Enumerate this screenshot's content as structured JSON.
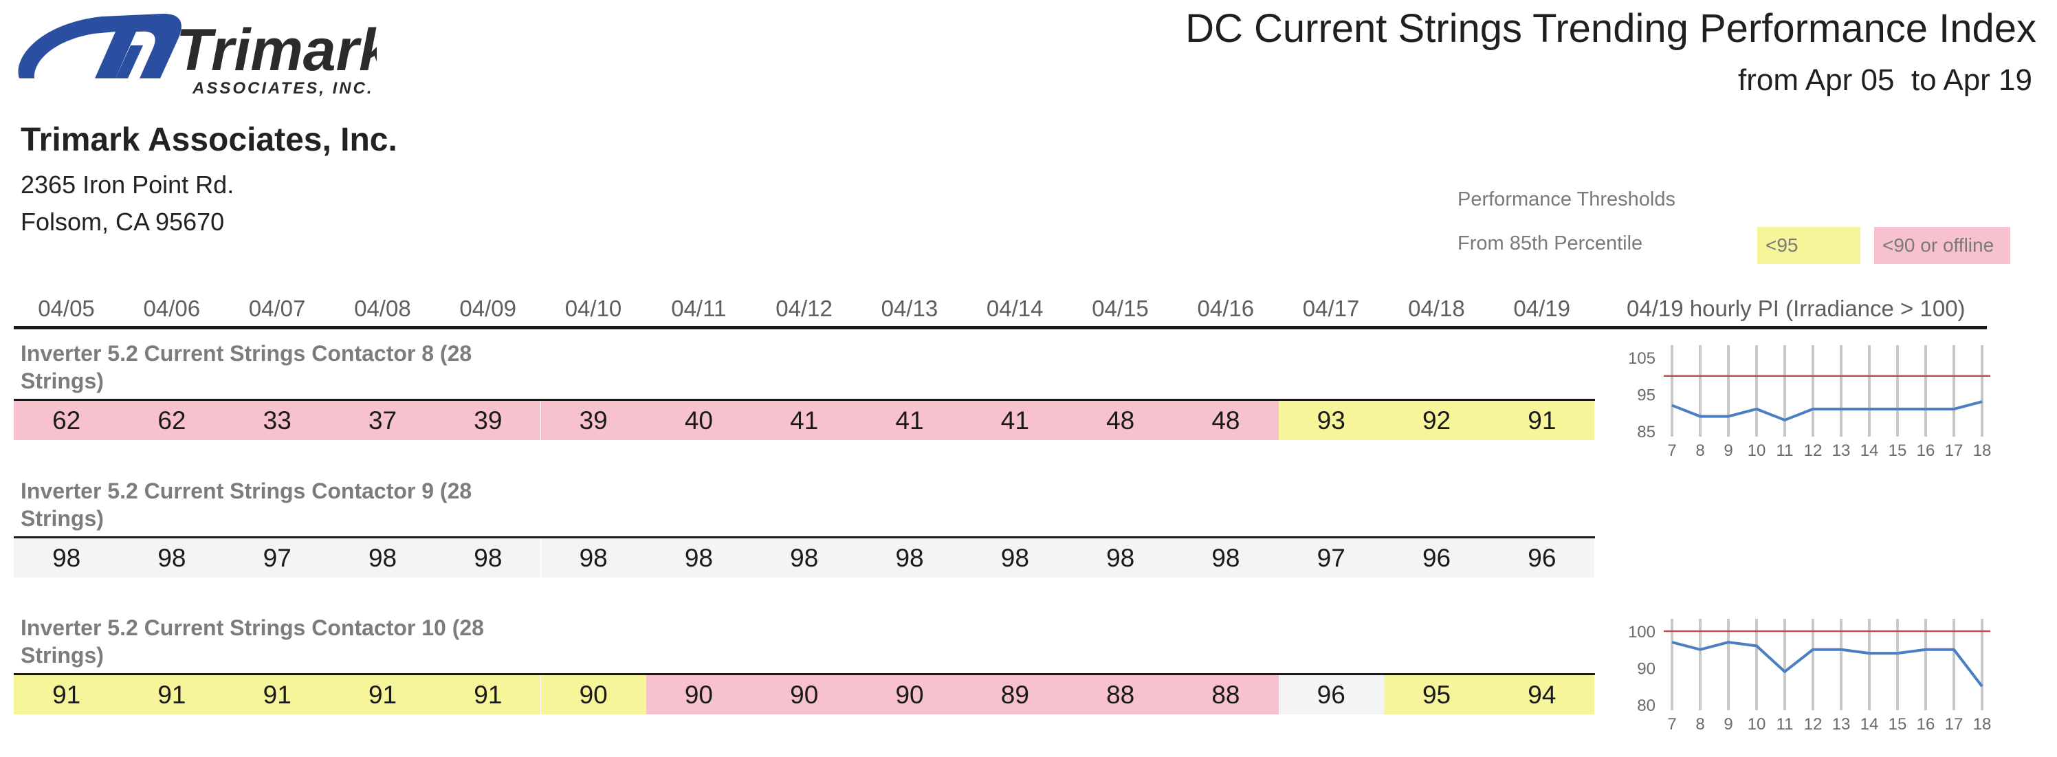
{
  "logo": {
    "name": "Trimark",
    "tagline": "ASSOCIATES, INC.",
    "color": "#2a4fa0"
  },
  "header": {
    "title": "DC Current Strings Trending Performance Index",
    "subtitle": "from Apr 05  to Apr 19"
  },
  "company": {
    "name": "Trimark Associates, Inc.",
    "address_line1": "2365 Iron Point Rd.",
    "address_line2": "Folsom, CA 95670"
  },
  "thresholds": {
    "title": "Performance Thresholds",
    "from_label": "From 85th Percentile",
    "yellow_label": "<95",
    "pink_label": "<90 or offline",
    "yellow_color": "#f7f59a",
    "pink_color": "#f7c1cd"
  },
  "dates": [
    "04/05",
    "04/06",
    "04/07",
    "04/08",
    "04/09",
    "04/10",
    "04/11",
    "04/12",
    "04/13",
    "04/14",
    "04/15",
    "04/16",
    "04/17",
    "04/18",
    "04/19"
  ],
  "hourly_header": "04/19 hourly PI (Irradiance > 100)",
  "sections": [
    {
      "title": "Inverter 5.2 Current Strings Contactor 8 (28 Strings)",
      "values": [
        62,
        62,
        33,
        37,
        39,
        39,
        40,
        41,
        41,
        41,
        48,
        48,
        93,
        92,
        91
      ],
      "status": [
        "pink",
        "pink",
        "pink",
        "pink",
        "pink",
        "pink",
        "pink",
        "pink",
        "pink",
        "pink",
        "pink",
        "pink",
        "yellow",
        "yellow",
        "yellow"
      ]
    },
    {
      "title": "Inverter 5.2 Current Strings Contactor 9 (28 Strings)",
      "values": [
        98,
        98,
        97,
        98,
        98,
        98,
        98,
        98,
        98,
        98,
        98,
        98,
        97,
        96,
        96
      ],
      "status": [
        "gray",
        "gray",
        "gray",
        "gray",
        "gray",
        "gray",
        "gray",
        "gray",
        "gray",
        "gray",
        "gray",
        "gray",
        "gray",
        "gray",
        "gray"
      ]
    },
    {
      "title": "Inverter 5.2 Current Strings Contactor 10 (28 Strings)",
      "values": [
        91,
        91,
        91,
        91,
        91,
        90,
        90,
        90,
        90,
        89,
        88,
        88,
        96,
        95,
        94
      ],
      "status": [
        "yellow",
        "yellow",
        "yellow",
        "yellow",
        "yellow",
        "yellow",
        "pink",
        "pink",
        "pink",
        "pink",
        "pink",
        "pink",
        "gray",
        "yellow",
        "yellow"
      ]
    }
  ],
  "chart_data": [
    {
      "type": "line",
      "x": [
        7,
        8,
        9,
        10,
        11,
        12,
        13,
        14,
        15,
        16,
        17,
        18
      ],
      "series": [
        {
          "values": [
            92,
            89,
            89,
            91,
            88,
            91,
            91,
            91,
            91,
            91,
            91,
            93
          ],
          "color": "#4a7fc4"
        }
      ],
      "threshold": {
        "value": 100,
        "color": "#c0504d"
      },
      "yticks": [
        85,
        95,
        105
      ],
      "ylim": [
        85,
        105
      ],
      "grid": "vertical"
    },
    {
      "type": "line",
      "x": [
        7,
        8,
        9,
        10,
        11,
        12,
        13,
        14,
        15,
        16,
        17,
        18
      ],
      "series": [
        {
          "values": [
            97,
            95,
            97,
            96,
            89,
            95,
            95,
            94,
            94,
            95,
            95,
            85
          ],
          "color": "#4a7fc4"
        }
      ],
      "threshold": {
        "value": 100,
        "color": "#c0504d"
      },
      "yticks": [
        80,
        90,
        100
      ],
      "ylim": [
        80,
        100
      ],
      "grid": "vertical"
    }
  ]
}
